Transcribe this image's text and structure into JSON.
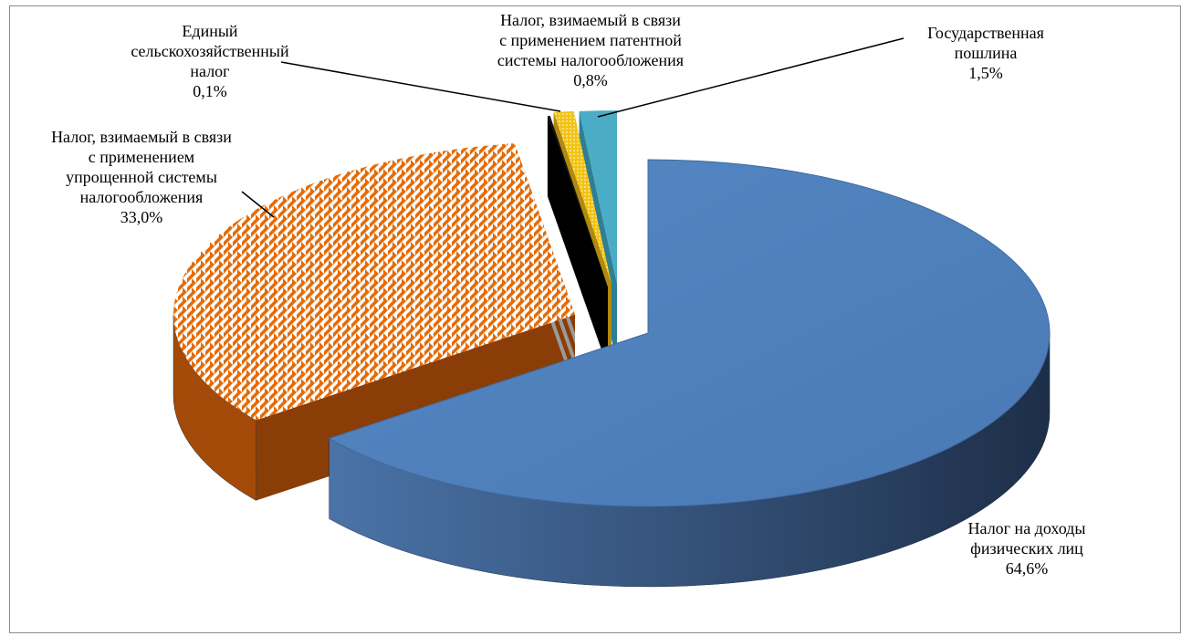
{
  "chart_data": {
    "type": "pie",
    "style": "3d-exploded",
    "title": "",
    "series": [
      {
        "name": "Налог на доходы физических лиц",
        "value": 64.6,
        "value_label": "64,6%",
        "color": "#4f81bd",
        "label_lines": [
          "Налог на доходы",
          "физических лиц"
        ]
      },
      {
        "name": "Налог, взимаемый в связи с применением упрощенной системы налогообложения",
        "value": 33.0,
        "value_label": "33,0%",
        "color": "#e36c09",
        "label_lines": [
          "Налог, взимаемый в связи",
          "с применением",
          "упрощенной системы",
          "налогообложения"
        ]
      },
      {
        "name": "Единый сельскохозяйственный налог",
        "value": 0.1,
        "value_label": "0,1%",
        "color": "#000000",
        "label_lines": [
          "Единый",
          "сельскохозяйственный",
          "налог"
        ]
      },
      {
        "name": "Налог, взимаемый в связи с применением патентной системы налогообложения",
        "value": 0.8,
        "value_label": "0,8%",
        "color": "#f2c314",
        "label_lines": [
          "Налог, взимаемый в связи",
          "с применением патентной",
          "системы налогообложения"
        ]
      },
      {
        "name": "Государственная пошлина",
        "value": 1.5,
        "value_label": "1,5%",
        "color": "#4bacc6",
        "label_lines": [
          "Государственная",
          "пошлина"
        ]
      }
    ]
  }
}
